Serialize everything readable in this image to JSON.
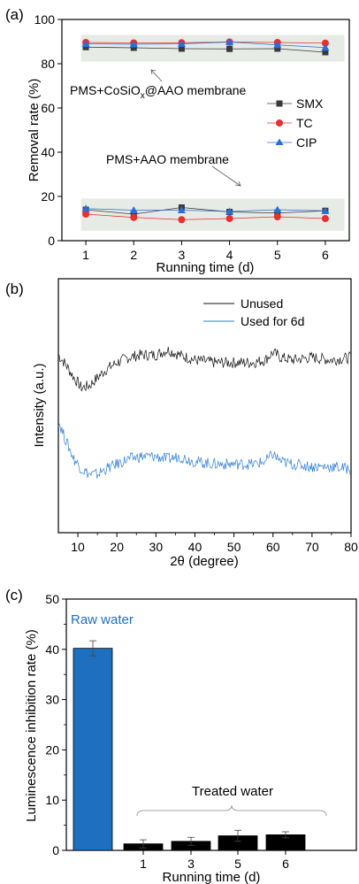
{
  "chart_data": [
    {
      "panel": "(a)",
      "type": "line",
      "x": [
        1,
        2,
        3,
        4,
        5,
        6
      ],
      "xlabel": "Running time (d)",
      "ylabel": "Removal rate (%)",
      "xlim": [
        0.5,
        6.5
      ],
      "ylim": [
        0,
        100
      ],
      "xticks": [
        "1",
        "2",
        "3",
        "4",
        "5",
        "6"
      ],
      "yticks": [
        "0",
        "20",
        "40",
        "60",
        "80",
        "100"
      ],
      "series": [
        {
          "name": "SMX",
          "color": "#3a3a3a",
          "marker": "square",
          "values": [
            87.5,
            87.2,
            86.8,
            86.7,
            86.8,
            85.2
          ]
        },
        {
          "name": "TC",
          "color": "#e8302f",
          "marker": "circle",
          "values": [
            89.6,
            89.4,
            89.5,
            89.8,
            89.6,
            89.3
          ]
        },
        {
          "name": "CIP",
          "color": "#2a6fd6",
          "marker": "triangle",
          "values": [
            89.0,
            88.8,
            89.0,
            89.8,
            88.5,
            87.3
          ]
        },
        {
          "name": "SMX",
          "color": "#3a3a3a",
          "marker": "square",
          "values": [
            14.0,
            12.0,
            15.0,
            13.0,
            12.5,
            13.5
          ]
        },
        {
          "name": "TC",
          "color": "#e8302f",
          "marker": "circle",
          "values": [
            12.0,
            10.5,
            9.5,
            10.0,
            10.8,
            10.0
          ]
        },
        {
          "name": "CIP",
          "color": "#2a6fd6",
          "marker": "triangle",
          "values": [
            14.5,
            13.8,
            13.8,
            13.2,
            14.0,
            13.5
          ]
        }
      ],
      "bands": [
        [
          81,
          93
        ],
        [
          4.5,
          19
        ]
      ],
      "legend": [
        "SMX",
        "TC",
        "CIP"
      ],
      "legend_position": "right",
      "annotations": {
        "upper_prefix": "PMS+CoSiO",
        "upper_sub": "x",
        "upper_suffix": "@AAO membrane",
        "lower": "PMS+AAO membrane"
      }
    },
    {
      "panel": "(b)",
      "type": "line",
      "xlabel": "2θ (degree)",
      "ylabel": "Intensity (a.u.)",
      "xlim": [
        5,
        80
      ],
      "xticks": [
        "10",
        "20",
        "30",
        "40",
        "50",
        "60",
        "70",
        "80"
      ],
      "yticks_shown": false,
      "series": [
        {
          "name": "Unused",
          "color": "#111111",
          "x": [
            5,
            7,
            9,
            11,
            13,
            15,
            17,
            20,
            23,
            26,
            30,
            33,
            36,
            40,
            45,
            50,
            55,
            58,
            60,
            62,
            65,
            70,
            75,
            80
          ],
          "values": [
            0.7,
            0.66,
            0.61,
            0.57,
            0.58,
            0.61,
            0.64,
            0.67,
            0.69,
            0.7,
            0.7,
            0.72,
            0.7,
            0.68,
            0.67,
            0.67,
            0.67,
            0.68,
            0.71,
            0.69,
            0.68,
            0.69,
            0.68,
            0.69
          ]
        },
        {
          "name": "Used for 6d",
          "color": "#2e7fd8",
          "x": [
            5,
            7,
            9,
            11,
            13,
            15,
            17,
            20,
            23,
            26,
            30,
            33,
            36,
            40,
            45,
            50,
            55,
            58,
            60,
            62,
            65,
            70,
            75,
            80
          ],
          "values": [
            0.44,
            0.36,
            0.29,
            0.25,
            0.23,
            0.23,
            0.25,
            0.27,
            0.29,
            0.3,
            0.3,
            0.29,
            0.3,
            0.28,
            0.27,
            0.27,
            0.27,
            0.28,
            0.31,
            0.28,
            0.27,
            0.26,
            0.26,
            0.25
          ]
        }
      ],
      "legend": [
        "Unused",
        "Used for 6d"
      ],
      "legend_position": "top-right"
    },
    {
      "panel": "(c)",
      "type": "bar",
      "categories": [
        "",
        "1",
        "3",
        "5",
        "6"
      ],
      "values": [
        40.2,
        1.3,
        1.8,
        2.9,
        3.1
      ],
      "errors": [
        1.5,
        0.8,
        0.8,
        1.1,
        0.6
      ],
      "colors": [
        "#1f6fc0",
        "#000000",
        "#000000",
        "#000000",
        "#000000"
      ],
      "xlabel": "Running time (d)",
      "ylabel": "Luminescence inhibition rate (%)",
      "ylim": [
        0,
        50
      ],
      "yticks": [
        "0",
        "10",
        "20",
        "30",
        "40",
        "50"
      ],
      "annotations": {
        "raw": "Raw water",
        "raw_color": "#1f6fc0",
        "treated": "Treated water"
      }
    }
  ]
}
